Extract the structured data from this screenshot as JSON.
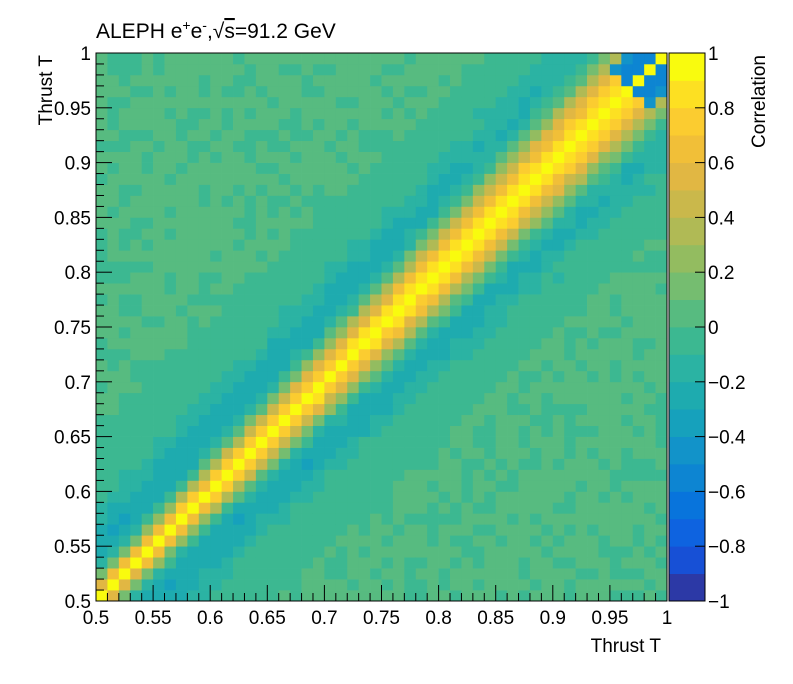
{
  "chart_data": {
    "type": "heatmap",
    "title_parts": {
      "main": "ALEPH e",
      "sup1": "+",
      "mid": "e",
      "sup2": "-",
      "comma": ",",
      "sqrt": "√",
      "over": "s",
      "rest": "=91.2 GeV"
    },
    "xlabel": "Thrust T",
    "ylabel": "Thrust T",
    "zlabel": "Correlation",
    "xlim": [
      0.5,
      1.0
    ],
    "ylim": [
      0.5,
      1.0
    ],
    "zlim": [
      -1,
      1
    ],
    "bins": 50,
    "x_ticks": [
      "0.5",
      "0.55",
      "0.6",
      "0.65",
      "0.7",
      "0.75",
      "0.8",
      "0.85",
      "0.9",
      "0.95",
      "1"
    ],
    "y_ticks": [
      "0.5",
      "0.55",
      "0.6",
      "0.65",
      "0.7",
      "0.75",
      "0.8",
      "0.85",
      "0.9",
      "0.95",
      "1"
    ],
    "z_ticks": [
      "−1",
      "−0.8",
      "−0.6",
      "−0.4",
      "−0.2",
      "0",
      "0.2",
      "0.4",
      "0.6",
      "0.8",
      "1"
    ],
    "colors": {
      "palette": [
        "#352a87",
        "#2c39a6",
        "#1750d6",
        "#0e63e0",
        "#0874dc",
        "#0d85d2",
        "#1293c9",
        "#16a1bc",
        "#1eabaf",
        "#2bb3a3",
        "#3cb891",
        "#57bb80",
        "#75bd70",
        "#93bc60",
        "#b0ba55",
        "#cab84b",
        "#e1b743",
        "#f1bf38",
        "#fbcc30",
        "#fde022",
        "#f9fb0e"
      ],
      "background": "#ffffff"
    }
  }
}
